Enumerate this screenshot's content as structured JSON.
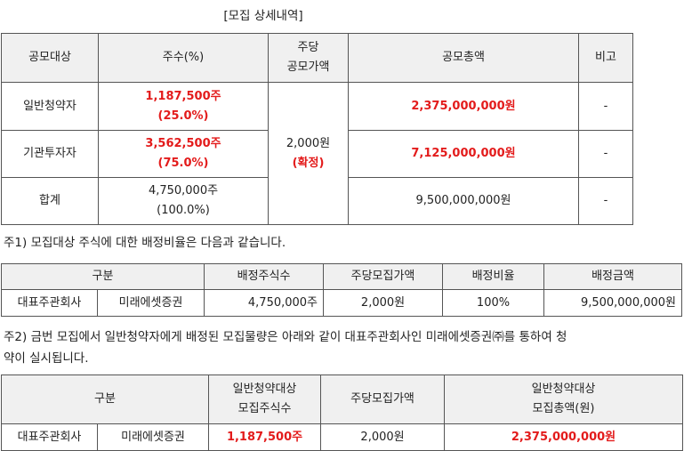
{
  "title": "[모집 상세내역]",
  "table1": {
    "headers": {
      "target": "공모대상",
      "shares": "주수(%)",
      "price_line1": "주당",
      "price_line2": "공모가액",
      "total": "공모총액",
      "note": "비고"
    },
    "rows": [
      {
        "target": "일반청약자",
        "shares": "1,187,500주",
        "pct": "(25.0%)",
        "total": "2,375,000,000원",
        "note": "-"
      },
      {
        "target": "기관투자자",
        "shares": "3,562,500주",
        "pct": "(75.0%)",
        "total": "7,125,000,000원",
        "note": "-"
      },
      {
        "target": "합계",
        "shares": "4,750,000주",
        "pct": "(100.0%)",
        "total": "9,500,000,000원",
        "note": "-"
      }
    ],
    "price": "2,000원",
    "price_status": "(확정)"
  },
  "note1": "주1) 모집대상 주식에 대한 배정비율은 다음과 같습니다.",
  "table2": {
    "headers": {
      "category": "구분",
      "alloc_shares": "배정주식수",
      "price": "주당모집가액",
      "ratio": "배정비율",
      "amount": "배정금액"
    },
    "row": {
      "role": "대표주관회사",
      "company": "미래에셋증권",
      "alloc_shares": "4,750,000주",
      "price": "2,000원",
      "ratio": "100%",
      "amount": "9,500,000,000원"
    }
  },
  "note2_line1": "주2) 금번 모집에서 일반청약자에게 배정된 모집물량은 아래와 같이 대표주관회사인 미래에셋증권㈜를 통하여 청",
  "note2_line2": "약이 실시됩니다.",
  "table3": {
    "headers": {
      "category": "구분",
      "shares_line1": "일반청약대상",
      "shares_line2": "모집주식수",
      "price": "주당모집가액",
      "total_line1": "일반청약대상",
      "total_line2": "모집총액(원)"
    },
    "row": {
      "role": "대표주관회사",
      "company": "미래에셋증권",
      "shares": "1,187,500주",
      "price": "2,000원",
      "total": "2,375,000,000원"
    }
  }
}
